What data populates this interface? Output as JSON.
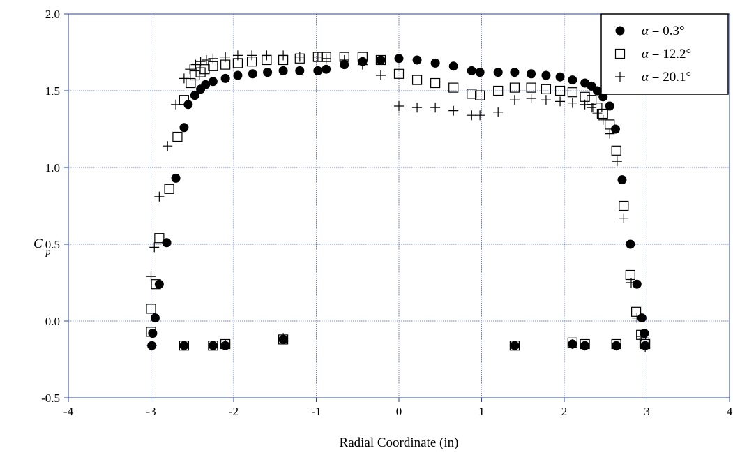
{
  "chart_data": {
    "type": "scatter",
    "title": "",
    "xlabel": "Radial Coordinate (in)",
    "ylabel": "C",
    "ylabel_subscript": "p",
    "xlim": [
      -4,
      4
    ],
    "ylim": [
      -0.5,
      2.0
    ],
    "x_ticks": [
      -4,
      -3,
      -2,
      -1,
      0,
      1,
      2,
      3,
      4
    ],
    "y_ticks": [
      -0.5,
      0.0,
      0.5,
      1.0,
      1.5,
      2.0
    ],
    "x_tick_labels": [
      "-4",
      "-3",
      "-2",
      "-1",
      "0",
      "1",
      "2",
      "3",
      "4"
    ],
    "y_tick_labels": [
      "-0.5",
      "0.0",
      "0.5",
      "1.0",
      "1.5",
      "2.0"
    ],
    "grid": true,
    "legend_position": "top-right",
    "colors": {
      "grid": "#4a5fc8",
      "axis": "#2a3fa8",
      "marker": "#000000"
    },
    "series": [
      {
        "name": "α = 0.3°",
        "legend_symbol": "α",
        "legend_value": "= 0.3°",
        "marker": "filled-circle",
        "points": [
          [
            -2.99,
            -0.16
          ],
          [
            -2.98,
            -0.08
          ],
          [
            -2.95,
            0.02
          ],
          [
            -2.9,
            0.24
          ],
          [
            -2.81,
            0.51
          ],
          [
            -2.7,
            0.93
          ],
          [
            -2.6,
            1.26
          ],
          [
            -2.55,
            1.41
          ],
          [
            -2.47,
            1.47
          ],
          [
            -2.4,
            1.51
          ],
          [
            -2.34,
            1.54
          ],
          [
            -2.25,
            1.56
          ],
          [
            -2.1,
            1.58
          ],
          [
            -1.95,
            1.6
          ],
          [
            -1.77,
            1.61
          ],
          [
            -1.59,
            1.62
          ],
          [
            -1.4,
            1.63
          ],
          [
            -1.2,
            1.63
          ],
          [
            -0.98,
            1.63
          ],
          [
            -0.88,
            1.64
          ],
          [
            -0.66,
            1.67
          ],
          [
            -0.44,
            1.69
          ],
          [
            -0.22,
            1.7
          ],
          [
            0.0,
            1.71
          ],
          [
            0.22,
            1.7
          ],
          [
            0.44,
            1.68
          ],
          [
            0.66,
            1.66
          ],
          [
            0.88,
            1.63
          ],
          [
            0.98,
            1.62
          ],
          [
            1.2,
            1.62
          ],
          [
            1.4,
            1.62
          ],
          [
            1.6,
            1.61
          ],
          [
            1.78,
            1.6
          ],
          [
            1.95,
            1.59
          ],
          [
            2.1,
            1.57
          ],
          [
            2.25,
            1.55
          ],
          [
            2.33,
            1.53
          ],
          [
            2.4,
            1.5
          ],
          [
            2.47,
            1.46
          ],
          [
            2.55,
            1.4
          ],
          [
            2.62,
            1.25
          ],
          [
            2.7,
            0.92
          ],
          [
            2.8,
            0.5
          ],
          [
            2.88,
            0.24
          ],
          [
            2.94,
            0.02
          ],
          [
            2.97,
            -0.08
          ],
          [
            2.98,
            -0.16
          ],
          [
            2.63,
            -0.16
          ],
          [
            2.25,
            -0.16
          ],
          [
            2.1,
            -0.15
          ],
          [
            1.4,
            -0.16
          ],
          [
            -1.4,
            -0.12
          ],
          [
            -2.1,
            -0.16
          ],
          [
            -2.25,
            -0.16
          ],
          [
            -2.6,
            -0.16
          ]
        ]
      },
      {
        "name": "α = 12.2°",
        "legend_symbol": "α",
        "legend_value": "= 12.2°",
        "marker": "open-square",
        "points": [
          [
            -3.0,
            0.08
          ],
          [
            -2.94,
            0.24
          ],
          [
            -2.9,
            0.54
          ],
          [
            -2.78,
            0.86
          ],
          [
            -2.68,
            1.2
          ],
          [
            -2.6,
            1.44
          ],
          [
            -2.52,
            1.55
          ],
          [
            -2.47,
            1.6
          ],
          [
            -2.4,
            1.62
          ],
          [
            -2.35,
            1.64
          ],
          [
            -2.25,
            1.66
          ],
          [
            -2.1,
            1.67
          ],
          [
            -1.95,
            1.68
          ],
          [
            -1.78,
            1.69
          ],
          [
            -1.6,
            1.7
          ],
          [
            -1.4,
            1.7
          ],
          [
            -1.2,
            1.71
          ],
          [
            -0.98,
            1.72
          ],
          [
            -0.88,
            1.72
          ],
          [
            -0.66,
            1.72
          ],
          [
            -0.44,
            1.72
          ],
          [
            -0.22,
            1.7
          ],
          [
            0.0,
            1.61
          ],
          [
            0.22,
            1.57
          ],
          [
            0.44,
            1.55
          ],
          [
            0.66,
            1.52
          ],
          [
            0.88,
            1.48
          ],
          [
            0.98,
            1.47
          ],
          [
            1.2,
            1.5
          ],
          [
            1.4,
            1.52
          ],
          [
            1.6,
            1.52
          ],
          [
            1.78,
            1.51
          ],
          [
            1.95,
            1.5
          ],
          [
            2.1,
            1.49
          ],
          [
            2.25,
            1.46
          ],
          [
            2.33,
            1.44
          ],
          [
            2.4,
            1.39
          ],
          [
            2.47,
            1.35
          ],
          [
            2.55,
            1.28
          ],
          [
            2.63,
            1.11
          ],
          [
            2.72,
            0.75
          ],
          [
            2.8,
            0.3
          ],
          [
            2.87,
            0.06
          ],
          [
            2.93,
            -0.09
          ],
          [
            2.98,
            -0.15
          ],
          [
            2.97,
            -0.14
          ],
          [
            2.63,
            -0.15
          ],
          [
            2.25,
            -0.15
          ],
          [
            2.1,
            -0.14
          ],
          [
            1.4,
            -0.16
          ],
          [
            -1.4,
            -0.12
          ],
          [
            -2.1,
            -0.15
          ],
          [
            -2.25,
            -0.16
          ],
          [
            -2.6,
            -0.16
          ],
          [
            -3.0,
            -0.07
          ]
        ]
      },
      {
        "name": "α = 20.1°",
        "legend_symbol": "α",
        "legend_value": "= 20.1°",
        "marker": "plus",
        "points": [
          [
            -3.0,
            0.29
          ],
          [
            -2.96,
            0.48
          ],
          [
            -2.9,
            0.81
          ],
          [
            -2.8,
            1.14
          ],
          [
            -2.7,
            1.41
          ],
          [
            -2.6,
            1.58
          ],
          [
            -2.53,
            1.64
          ],
          [
            -2.46,
            1.67
          ],
          [
            -2.4,
            1.69
          ],
          [
            -2.33,
            1.7
          ],
          [
            -2.25,
            1.71
          ],
          [
            -2.1,
            1.72
          ],
          [
            -1.95,
            1.73
          ],
          [
            -1.78,
            1.73
          ],
          [
            -1.6,
            1.73
          ],
          [
            -1.4,
            1.73
          ],
          [
            -1.2,
            1.72
          ],
          [
            -0.98,
            1.72
          ],
          [
            -0.88,
            1.71
          ],
          [
            -0.66,
            1.7
          ],
          [
            -0.44,
            1.67
          ],
          [
            -0.22,
            1.6
          ],
          [
            0.0,
            1.4
          ],
          [
            0.22,
            1.39
          ],
          [
            0.44,
            1.39
          ],
          [
            0.66,
            1.37
          ],
          [
            0.88,
            1.34
          ],
          [
            0.98,
            1.34
          ],
          [
            1.2,
            1.36
          ],
          [
            1.4,
            1.44
          ],
          [
            1.6,
            1.45
          ],
          [
            1.78,
            1.44
          ],
          [
            1.95,
            1.43
          ],
          [
            2.1,
            1.42
          ],
          [
            2.25,
            1.41
          ],
          [
            2.33,
            1.39
          ],
          [
            2.4,
            1.35
          ],
          [
            2.47,
            1.31
          ],
          [
            2.55,
            1.22
          ],
          [
            2.64,
            1.04
          ],
          [
            2.72,
            0.67
          ],
          [
            2.81,
            0.25
          ],
          [
            2.88,
            0.02
          ],
          [
            2.93,
            -0.1
          ],
          [
            2.98,
            -0.17
          ],
          [
            -2.99,
            -0.16
          ],
          [
            -2.6,
            -0.16
          ],
          [
            -2.25,
            -0.16
          ],
          [
            -2.1,
            -0.15
          ],
          [
            -1.4,
            -0.11
          ],
          [
            1.4,
            -0.16
          ],
          [
            2.1,
            -0.15
          ],
          [
            2.25,
            -0.16
          ],
          [
            2.63,
            -0.16
          ]
        ]
      }
    ]
  }
}
